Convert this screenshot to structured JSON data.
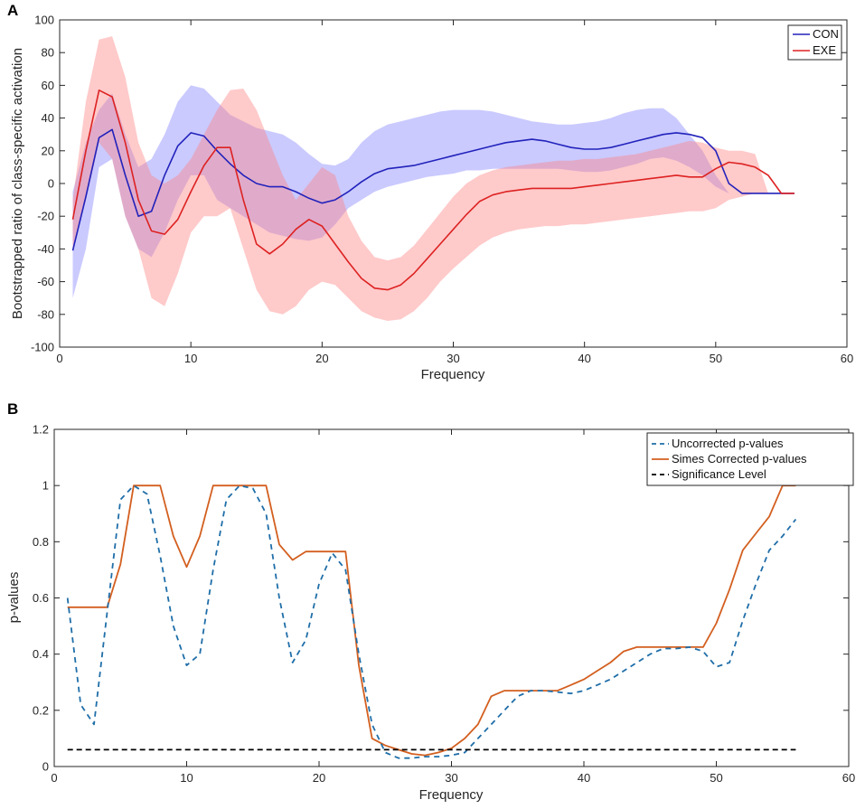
{
  "chart_data": [
    {
      "panel_label": "A",
      "type": "line",
      "xlabel": "Frequency",
      "ylabel": "Bootstrapped ratio of class-specific activation",
      "xlim": [
        0,
        60
      ],
      "ylim": [
        -100,
        100
      ],
      "xticks": [
        0,
        10,
        20,
        30,
        40,
        50,
        60
      ],
      "yticks": [
        -100,
        -80,
        -60,
        -40,
        -20,
        0,
        20,
        40,
        60,
        80,
        100
      ],
      "x": [
        1,
        2,
        3,
        4,
        5,
        6,
        7,
        8,
        9,
        10,
        11,
        12,
        13,
        14,
        15,
        16,
        17,
        18,
        19,
        20,
        21,
        22,
        23,
        24,
        25,
        26,
        27,
        28,
        29,
        30,
        31,
        32,
        33,
        34,
        35,
        36,
        37,
        38,
        39,
        40,
        41,
        42,
        43,
        44,
        45,
        46,
        47,
        48,
        49,
        50,
        51,
        52,
        53,
        54,
        55,
        56
      ],
      "legend": {
        "position": "top-right",
        "entries": [
          "CON",
          "EXE"
        ]
      },
      "series": [
        {
          "name": "CON",
          "color": "#2222bb",
          "band_color": "#8080ff",
          "values": [
            -41,
            -8,
            28,
            33,
            5,
            -20,
            -17,
            5,
            23,
            31,
            29,
            20,
            12,
            5,
            0,
            -2,
            -2,
            -5,
            -9,
            -12,
            -10,
            -5,
            1,
            6,
            9,
            10,
            11,
            13,
            15,
            17,
            19,
            21,
            23,
            25,
            26,
            27,
            26,
            24,
            22,
            21,
            21,
            22,
            24,
            26,
            28,
            30,
            31,
            30,
            28,
            20,
            0,
            -6,
            -6,
            -6,
            -6,
            -6
          ],
          "upper": [
            -5,
            25,
            45,
            55,
            30,
            10,
            15,
            30,
            50,
            60,
            58,
            50,
            42,
            38,
            34,
            32,
            30,
            25,
            18,
            12,
            11,
            15,
            25,
            32,
            36,
            38,
            40,
            42,
            44,
            45,
            45,
            45,
            44,
            42,
            40,
            38,
            37,
            36,
            36,
            37,
            38,
            40,
            43,
            45,
            46,
            46,
            40,
            30,
            20,
            5,
            -6,
            -6,
            -6,
            -6,
            -6,
            -6
          ],
          "lower": [
            -70,
            -40,
            10,
            15,
            -20,
            -40,
            -45,
            -30,
            -10,
            5,
            5,
            -10,
            -15,
            -20,
            -25,
            -30,
            -32,
            -34,
            -35,
            -33,
            -25,
            -15,
            -10,
            -5,
            -2,
            0,
            2,
            4,
            5,
            6,
            8,
            8,
            9,
            9,
            9,
            9,
            9,
            9,
            8,
            7,
            7,
            8,
            10,
            12,
            15,
            16,
            14,
            10,
            5,
            -2,
            -6,
            -6,
            -6,
            -6,
            -6,
            -6
          ]
        },
        {
          "name": "EXE",
          "color": "#dd2222",
          "band_color": "#ff8080",
          "values": [
            -22,
            20,
            57,
            53,
            25,
            -10,
            -29,
            -31,
            -22,
            -5,
            11,
            22,
            22,
            -10,
            -37,
            -43,
            -37,
            -28,
            -22,
            -26,
            -37,
            -48,
            -58,
            -64,
            -65,
            -62,
            -55,
            -46,
            -37,
            -28,
            -19,
            -11,
            -7,
            -5,
            -4,
            -3,
            -3,
            -3,
            -3,
            -2,
            -1,
            0,
            1,
            2,
            3,
            4,
            5,
            4,
            4,
            9,
            13,
            12,
            10,
            5,
            -6,
            -6
          ],
          "upper": [
            -10,
            50,
            88,
            90,
            65,
            25,
            5,
            0,
            5,
            15,
            30,
            45,
            57,
            58,
            45,
            25,
            5,
            -10,
            0,
            10,
            5,
            -20,
            -35,
            -45,
            -47,
            -45,
            -38,
            -28,
            -18,
            -8,
            0,
            5,
            8,
            10,
            11,
            12,
            13,
            14,
            14,
            15,
            15,
            16,
            17,
            18,
            20,
            22,
            24,
            26,
            25,
            22,
            20,
            20,
            18,
            -6,
            -6,
            -6
          ],
          "lower": [
            -40,
            -10,
            25,
            15,
            -20,
            -40,
            -70,
            -75,
            -55,
            -30,
            -20,
            -20,
            -15,
            -40,
            -65,
            -78,
            -80,
            -75,
            -65,
            -60,
            -62,
            -70,
            -78,
            -82,
            -84,
            -83,
            -78,
            -70,
            -60,
            -52,
            -45,
            -38,
            -33,
            -30,
            -28,
            -27,
            -26,
            -26,
            -25,
            -25,
            -24,
            -23,
            -22,
            -21,
            -20,
            -19,
            -18,
            -17,
            -17,
            -15,
            -10,
            -8,
            -6,
            -6,
            -6,
            -6
          ]
        }
      ]
    },
    {
      "panel_label": "B",
      "type": "line",
      "xlabel": "Frequency",
      "ylabel": "p-values",
      "xlim": [
        0,
        60
      ],
      "ylim": [
        0,
        1.2
      ],
      "xticks": [
        0,
        10,
        20,
        30,
        40,
        50,
        60
      ],
      "yticks": [
        0,
        0.2,
        0.4,
        0.6,
        0.8,
        1,
        1.2
      ],
      "x": [
        1,
        2,
        3,
        4,
        5,
        6,
        7,
        8,
        9,
        10,
        11,
        12,
        13,
        14,
        15,
        16,
        17,
        18,
        19,
        20,
        21,
        22,
        23,
        24,
        25,
        26,
        27,
        28,
        29,
        30,
        31,
        32,
        33,
        34,
        35,
        36,
        37,
        38,
        39,
        40,
        41,
        42,
        43,
        44,
        45,
        46,
        47,
        48,
        49,
        50,
        51,
        52,
        53,
        54,
        55,
        56
      ],
      "legend": {
        "position": "top-right",
        "entries": [
          "Uncorrected p-values",
          "Simes Corrected p-values",
          "Significance Level"
        ]
      },
      "series": [
        {
          "name": "Uncorrected p-values",
          "style": "dashed",
          "color": "#1f6ea8",
          "values": [
            0.6,
            0.22,
            0.15,
            0.55,
            0.95,
            1.0,
            0.97,
            0.75,
            0.5,
            0.36,
            0.4,
            0.7,
            0.95,
            1.0,
            0.99,
            0.9,
            0.6,
            0.37,
            0.45,
            0.65,
            0.76,
            0.7,
            0.4,
            0.15,
            0.05,
            0.03,
            0.03,
            0.035,
            0.035,
            0.04,
            0.05,
            0.1,
            0.15,
            0.2,
            0.25,
            0.27,
            0.27,
            0.265,
            0.26,
            0.27,
            0.29,
            0.31,
            0.34,
            0.37,
            0.4,
            0.42,
            0.42,
            0.425,
            0.41,
            0.355,
            0.37,
            0.52,
            0.65,
            0.77,
            0.82,
            0.88
          ]
        },
        {
          "name": "Simes Corrected p-values",
          "style": "solid",
          "color": "#d35f1f",
          "values": [
            0.567,
            0.567,
            0.567,
            0.567,
            0.72,
            1.0,
            1.0,
            1.0,
            0.82,
            0.71,
            0.82,
            1.0,
            1.0,
            1.0,
            1.0,
            1.0,
            0.79,
            0.735,
            0.765,
            0.765,
            0.765,
            0.765,
            0.36,
            0.1,
            0.075,
            0.06,
            0.045,
            0.04,
            0.05,
            0.065,
            0.1,
            0.15,
            0.25,
            0.27,
            0.27,
            0.27,
            0.27,
            0.27,
            0.29,
            0.31,
            0.34,
            0.37,
            0.41,
            0.425,
            0.425,
            0.425,
            0.425,
            0.425,
            0.425,
            0.51,
            0.63,
            0.77,
            0.83,
            0.89,
            1.0,
            1.0
          ]
        },
        {
          "name": "Significance Level",
          "style": "dashed",
          "color": "#000000",
          "values": [
            0.06,
            0.06
          ],
          "x": [
            1,
            56
          ]
        }
      ]
    }
  ]
}
